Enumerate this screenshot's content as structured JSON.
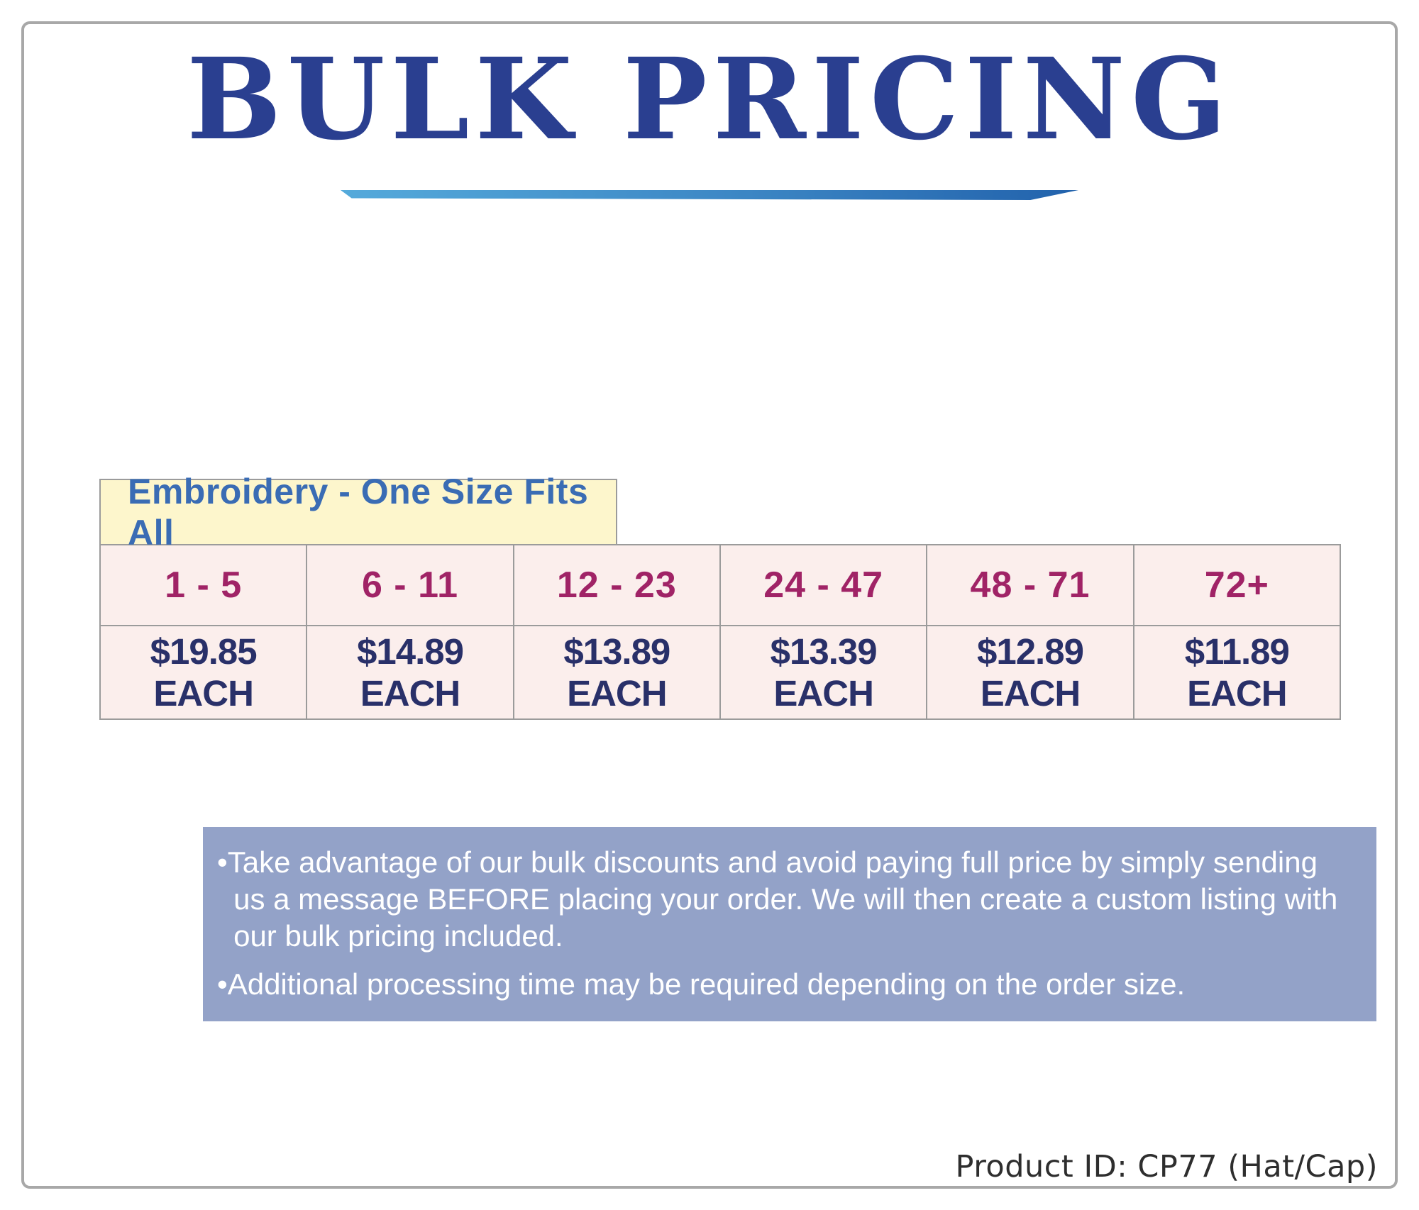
{
  "header": {
    "title": "BULK PRICING"
  },
  "pricing_table": {
    "header": "Embroidery - One Size Fits All",
    "tiers": [
      {
        "range": "1 - 5",
        "price": "$19.85 EACH"
      },
      {
        "range": "6 - 11",
        "price": "$14.89 EACH"
      },
      {
        "range": "12 - 23",
        "price": "$13.89 EACH"
      },
      {
        "range": "24 - 47",
        "price": "$13.39 EACH"
      },
      {
        "range": "48 - 71",
        "price": "$12.89 EACH"
      },
      {
        "range": "72+",
        "price": "$11.89 EACH"
      }
    ]
  },
  "notes": {
    "items": [
      "•Take advantage of our bulk discounts and avoid paying full price by simply sending us a message BEFORE placing your order. We will then create a custom listing with our bulk pricing included.",
      "•Additional processing time may be required depending on the order size."
    ]
  },
  "footer": {
    "product_id": "Product ID: CP77 (Hat/Cap)"
  },
  "colors": {
    "title_blue": "#2a3f90",
    "table_header_blue": "#3a6cb4",
    "range_magenta": "#a02366",
    "price_navy": "#293069",
    "table_cell_bg": "#fbeeec",
    "table_header_bg": "#fdf6cc",
    "table_border_gray": "#9b9b9b",
    "notes_bg": "#93a2c8",
    "frame_border_gray": "#a8a8a8",
    "underline_gradient_start": "#55aadb",
    "underline_gradient_end": "#2262ac"
  }
}
